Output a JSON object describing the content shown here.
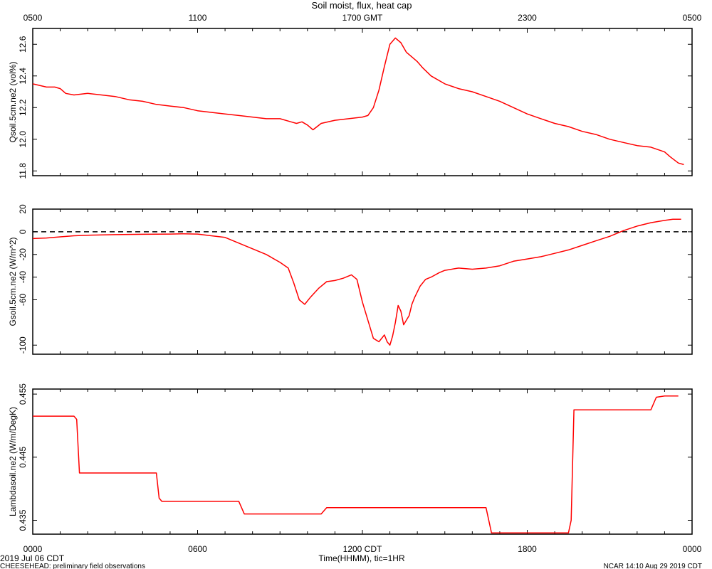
{
  "figure": {
    "title": "Soil moist, flux, heat cap",
    "top_axis_labels": [
      "0500",
      "1100",
      "1700 GMT",
      "2300",
      "0500"
    ],
    "bottom_axis_labels": [
      "0000",
      "0600",
      "1200 CDT",
      "1800",
      "0000"
    ],
    "bottom_axis_title": "Time(HHMM), tic=1HR",
    "date_label": "2019 Jul 06 CDT",
    "footer_left": "CHEESEHEAD: preliminary field observations",
    "footer_right": "NCAR 14:10 Aug 29 2019 CDT",
    "line_color": "#ff0000"
  },
  "chart_data": [
    {
      "type": "line",
      "ylabel": "Qsoil.5cm.ne2 (vol%)",
      "ylim": [
        11.77,
        12.7
      ],
      "yticks": [
        11.8,
        12.0,
        12.2,
        12.4,
        12.6
      ],
      "ytick_labels": [
        "11.8",
        "12.0",
        "12.2",
        "12.4",
        "12.6"
      ],
      "xlim": [
        0,
        24
      ],
      "series": [
        {
          "x": [
            0,
            0.25,
            0.5,
            0.8,
            1.0,
            1.2,
            1.5,
            2.0,
            2.5,
            3.0,
            3.5,
            4.0,
            4.5,
            5.0,
            5.5,
            6.0,
            6.5,
            7.0,
            7.5,
            8.0,
            8.5,
            9.0,
            9.4,
            9.6,
            9.8,
            10.0,
            10.2,
            10.5,
            11.0,
            11.5,
            12.0,
            12.2,
            12.4,
            12.6,
            12.8,
            13.0,
            13.2,
            13.4,
            13.6,
            13.8,
            14.0,
            14.2,
            14.5,
            15.0,
            15.5,
            16.0,
            16.5,
            17.0,
            17.5,
            18.0,
            18.5,
            19.0,
            19.5,
            20.0,
            20.5,
            21.0,
            21.5,
            22.0,
            22.5,
            23.0,
            23.2,
            23.5,
            23.7
          ],
          "y": [
            12.35,
            12.34,
            12.33,
            12.33,
            12.32,
            12.29,
            12.28,
            12.29,
            12.28,
            12.27,
            12.25,
            12.24,
            12.22,
            12.21,
            12.2,
            12.18,
            12.17,
            12.16,
            12.15,
            12.14,
            12.13,
            12.13,
            12.11,
            12.1,
            12.11,
            12.09,
            12.06,
            12.1,
            12.12,
            12.13,
            12.14,
            12.15,
            12.2,
            12.31,
            12.46,
            12.6,
            12.64,
            12.61,
            12.55,
            12.52,
            12.49,
            12.45,
            12.4,
            12.35,
            12.32,
            12.3,
            12.27,
            12.24,
            12.2,
            12.16,
            12.13,
            12.1,
            12.08,
            12.05,
            12.03,
            12.0,
            11.98,
            11.96,
            11.95,
            11.92,
            11.89,
            11.85,
            11.84
          ],
          "values_note_unused": null
        }
      ],
      "reference_line": null
    },
    {
      "type": "line",
      "ylabel": "Gsoil.5cm.ne2 (W/m^2)",
      "ylim": [
        -108,
        20
      ],
      "yticks": [
        -100,
        -60,
        -40,
        -20,
        0,
        20
      ],
      "ytick_labels": [
        "-100",
        "-60",
        "-40",
        "-20",
        "0",
        "20"
      ],
      "xlim": [
        0,
        24
      ],
      "series": [
        {
          "x": [
            0,
            0.5,
            1.0,
            1.5,
            2.0,
            3.0,
            4.0,
            5.0,
            5.5,
            6.0,
            6.5,
            7.0,
            7.5,
            8.0,
            8.5,
            9.0,
            9.3,
            9.5,
            9.7,
            9.9,
            10.1,
            10.4,
            10.7,
            11.0,
            11.3,
            11.6,
            11.8,
            12.0,
            12.2,
            12.4,
            12.6,
            12.8,
            12.9,
            13.0,
            13.1,
            13.2,
            13.3,
            13.4,
            13.5,
            13.7,
            13.8,
            13.9,
            14.1,
            14.3,
            14.5,
            14.8,
            15.0,
            15.5,
            16.0,
            16.5,
            17.0,
            17.5,
            18.0,
            18.5,
            19.0,
            19.5,
            20.0,
            20.5,
            21.0,
            21.5,
            22.0,
            22.5,
            23.0,
            23.3,
            23.6
          ],
          "y": [
            -6,
            -5.5,
            -4.5,
            -3.5,
            -3,
            -2.5,
            -2.2,
            -2,
            -1.8,
            -2,
            -3.5,
            -5,
            -10,
            -15,
            -20,
            -27,
            -32,
            -45,
            -60,
            -64,
            -58,
            -50,
            -44,
            -43,
            -41,
            -38,
            -42,
            -62,
            -78,
            -94,
            -97,
            -91,
            -97,
            -100,
            -92,
            -80,
            -65,
            -70,
            -82,
            -74,
            -64,
            -58,
            -48,
            -42,
            -40,
            -36,
            -34,
            -32,
            -33,
            -32,
            -30,
            -26,
            -24,
            -22,
            -19,
            -16,
            -12,
            -8,
            -4,
            1,
            5,
            8,
            10,
            11,
            11
          ],
          "values_note_unused": null
        }
      ],
      "reference_line": {
        "y": 0,
        "style": "dashed"
      }
    },
    {
      "type": "line",
      "ylabel": "Lambdasoil.ne2 (W/m/DegK)",
      "ylim": [
        0.4328,
        0.4558
      ],
      "yticks": [
        0.435,
        0.445,
        0.455
      ],
      "ytick_labels": [
        "0.435",
        "0.445",
        "0.455"
      ],
      "xlim": [
        0,
        24
      ],
      "series": [
        {
          "x": [
            0,
            1.5,
            1.6,
            1.7,
            4.5,
            4.6,
            4.7,
            7.5,
            7.7,
            10.5,
            10.7,
            16.5,
            16.7,
            19.5,
            19.6,
            19.7,
            22.5,
            22.7,
            23.0,
            23.5
          ],
          "y": [
            0.4515,
            0.4515,
            0.451,
            0.4425,
            0.4425,
            0.4385,
            0.438,
            0.438,
            0.436,
            0.436,
            0.437,
            0.437,
            0.433,
            0.433,
            0.435,
            0.4525,
            0.4525,
            0.4545,
            0.4547,
            0.4547
          ],
          "values_note_unused": null
        }
      ],
      "reference_line": null
    }
  ]
}
